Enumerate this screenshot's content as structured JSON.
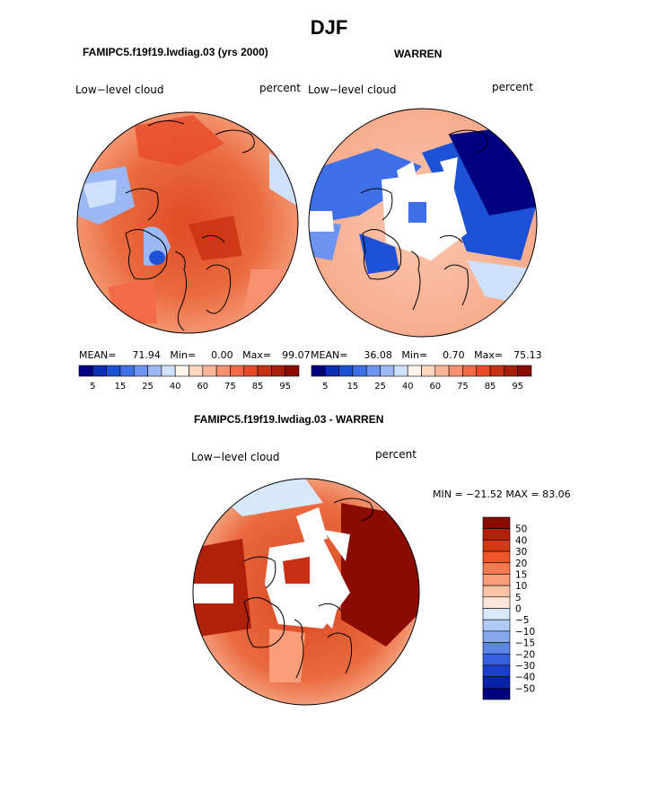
{
  "title": "DJF",
  "panels": [
    {
      "title": "FAMIPC5.f19f19.lwdiag.03 (yrs 2000)",
      "variable": "Low−level cloud",
      "units": "percent",
      "stats": {
        "mean_label": "MEAN=",
        "mean": "71.94",
        "min_label": "Min=",
        "min": "0.00",
        "max_label": "Max=",
        "max": "99.07"
      }
    },
    {
      "title": "WARREN",
      "variable": "Low−level cloud",
      "units": "percent",
      "stats": {
        "mean_label": "MEAN=",
        "mean": "36.08",
        "min_label": "Min=",
        "min": "0.70",
        "max_label": "Max=",
        "max": "75.13"
      }
    },
    {
      "title": "FAMIPC5.f19f19.lwdiag.03 - WARREN",
      "variable": "Low−level cloud",
      "units": "percent",
      "minmax_text": "MIN = −21.52 MAX =  83.06"
    }
  ],
  "colorbar_abs": {
    "colors": [
      "#000080",
      "#0a2fb5",
      "#1e52d6",
      "#3f6fe6",
      "#6d94f0",
      "#9cb8f5",
      "#cfe0fb",
      "#fff3ea",
      "#fdd4bd",
      "#fbb596",
      "#f99070",
      "#f46a47",
      "#e84a28",
      "#c92f12",
      "#a81c08",
      "#8a0b00"
    ],
    "tick_labels": [
      "5",
      "15",
      "25",
      "40",
      "60",
      "75",
      "85",
      "95"
    ]
  },
  "colorbar_diff": {
    "colors": [
      "#8a0b00",
      "#b0200a",
      "#d03a15",
      "#ee5528",
      "#f47a50",
      "#f89e7a",
      "#fbc3a6",
      "#fde6d8",
      "#d8e8fb",
      "#b0c9f5",
      "#86a8ef",
      "#5c85e8",
      "#3661de",
      "#1c3fca",
      "#0a23a6",
      "#000080"
    ],
    "tick_labels": [
      "50",
      "40",
      "30",
      "20",
      "15",
      "10",
      "5",
      "0",
      "−5",
      "−10",
      "−15",
      "−20",
      "−30",
      "−40",
      "−50"
    ]
  },
  "chart_data": [
    {
      "type": "polar map",
      "title": "FAMIPC5.f19f19.lwdiag.03 (yrs 2000)",
      "subtitle": "DJF",
      "field": "Low-level cloud",
      "units": "percent",
      "mean": 71.94,
      "min": 0.0,
      "max": 99.07,
      "contour_levels": [
        5,
        10,
        15,
        20,
        25,
        30,
        40,
        50,
        60,
        65,
        75,
        80,
        85,
        90,
        95
      ]
    },
    {
      "type": "polar map",
      "title": "WARREN",
      "subtitle": "DJF",
      "field": "Low-level cloud",
      "units": "percent",
      "mean": 36.08,
      "min": 0.7,
      "max": 75.13,
      "contour_levels": [
        5,
        10,
        15,
        20,
        25,
        30,
        40,
        50,
        60,
        65,
        75,
        80,
        85,
        90,
        95
      ]
    },
    {
      "type": "polar map (difference)",
      "title": "FAMIPC5.f19f19.lwdiag.03 - WARREN",
      "field": "Low-level cloud",
      "units": "percent",
      "min": -21.52,
      "max": 83.06,
      "contour_levels": [
        -50,
        -40,
        -30,
        -20,
        -15,
        -10,
        -5,
        0,
        5,
        10,
        15,
        20,
        30,
        40,
        50
      ]
    }
  ]
}
